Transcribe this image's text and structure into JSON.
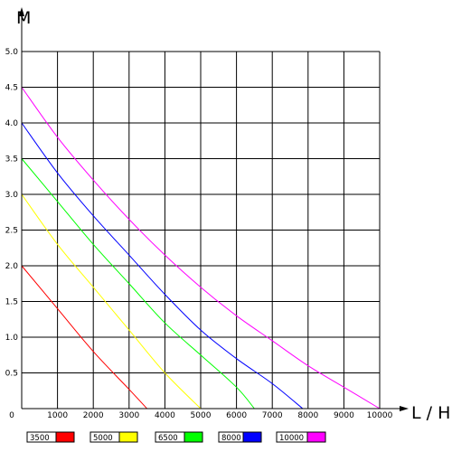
{
  "chart_data": {
    "type": "line",
    "title": "",
    "xlabel": "L / H",
    "ylabel": "M",
    "xlim": [
      0,
      10000
    ],
    "ylim": [
      0,
      5.0
    ],
    "x_ticks": [
      "0",
      "1000",
      "2000",
      "3000",
      "4000",
      "5000",
      "6000",
      "7000",
      "8000",
      "9000",
      "10000"
    ],
    "y_ticks": [
      "0.5",
      "1.0",
      "1.5",
      "2.0",
      "2.5",
      "3.0",
      "3.5",
      "4.0",
      "4.5",
      "5.0"
    ],
    "grid": true,
    "legend_position": "bottom",
    "series": [
      {
        "name": "3500",
        "color": "#ff0000",
        "x": [
          0,
          1000,
          2000,
          3000,
          3500
        ],
        "y": [
          2.0,
          1.4,
          0.8,
          0.27,
          0
        ]
      },
      {
        "name": "5000",
        "color": "#ffff00",
        "x": [
          0,
          1000,
          2000,
          3000,
          4000,
          5000
        ],
        "y": [
          3.0,
          2.3,
          1.7,
          1.1,
          0.5,
          0
        ]
      },
      {
        "name": "6500",
        "color": "#00ff00",
        "x": [
          0,
          1000,
          2000,
          3000,
          4000,
          5000,
          6000,
          6500
        ],
        "y": [
          3.5,
          2.9,
          2.3,
          1.75,
          1.2,
          0.75,
          0.3,
          0
        ]
      },
      {
        "name": "8000",
        "color": "#0000ff",
        "x": [
          0,
          1000,
          2000,
          3000,
          4000,
          5000,
          6000,
          7000,
          7850
        ],
        "y": [
          4.0,
          3.3,
          2.7,
          2.15,
          1.6,
          1.1,
          0.7,
          0.35,
          0
        ]
      },
      {
        "name": "10000",
        "color": "#ff00ff",
        "x": [
          0,
          1000,
          2000,
          3000,
          4000,
          5000,
          6000,
          7000,
          8000,
          9000,
          10000
        ],
        "y": [
          4.5,
          3.8,
          3.2,
          2.65,
          2.15,
          1.7,
          1.3,
          0.95,
          0.6,
          0.3,
          0
        ]
      }
    ]
  }
}
